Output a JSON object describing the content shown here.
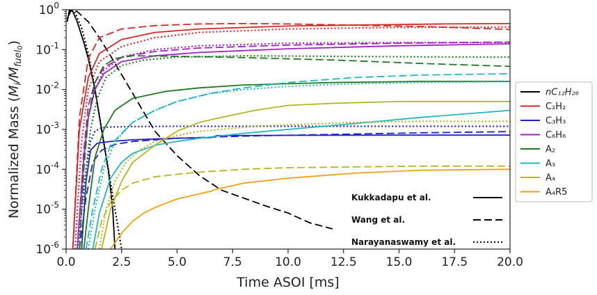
{
  "chart_data": {
    "type": "line",
    "title": "",
    "xlabel": "Time ASOI [ms]",
    "ylabel": "Normalized Mass (M_i/M_fuel0)",
    "ylabel_parts": {
      "prefix": "Normalized Mass (",
      "m1": "M",
      "s1": "i",
      "slash": "/",
      "m2": "M",
      "s2": "fuel",
      "s3": "0",
      "suffix": ")"
    },
    "xlim": [
      0.0,
      20.0
    ],
    "ylim": [
      1e-06,
      1
    ],
    "yscale": "log",
    "x_ticks": [
      "0.0",
      "2.5",
      "5.0",
      "7.5",
      "10.0",
      "12.5",
      "15.0",
      "17.5",
      "20.0"
    ],
    "y_ticks": [
      {
        "base": "10",
        "exp": "-6"
      },
      {
        "base": "10",
        "exp": "-5"
      },
      {
        "base": "10",
        "exp": "-4"
      },
      {
        "base": "10",
        "exp": "-3"
      },
      {
        "base": "10",
        "exp": "-2"
      },
      {
        "base": "10",
        "exp": "-1"
      },
      {
        "base": "10",
        "exp": "0"
      }
    ],
    "legend_position": "right",
    "species": [
      {
        "id": "c12h26",
        "label": "nC₁₂H₂₆",
        "color": "#000000"
      },
      {
        "id": "c2h2",
        "label": "C₂H₂",
        "color": "#d62728"
      },
      {
        "id": "c3h3",
        "label": "C₃H₃",
        "color": "#1f1fd0"
      },
      {
        "id": "c6h6",
        "label": "C₆H₆",
        "color": "#a020c0"
      },
      {
        "id": "a2",
        "label": "A₂",
        "color": "#1e7a1e"
      },
      {
        "id": "a3",
        "label": "A₃",
        "color": "#22b5c5"
      },
      {
        "id": "a4",
        "label": "A₄",
        "color": "#b5b520"
      },
      {
        "id": "a4r5",
        "label": "A₄R5",
        "color": "#f5a010"
      }
    ],
    "mechanisms": [
      {
        "id": "kukkadapu",
        "label": "Kukkadapu et al.",
        "style": "solid"
      },
      {
        "id": "wang",
        "label": "Wang et al.",
        "style": "dashed"
      },
      {
        "id": "narayanaswamy",
        "label": "Narayanaswamy et al.",
        "style": "dotted"
      }
    ],
    "series": [
      {
        "species": "c12h26",
        "mechanism": "kukkadapu",
        "x": [
          0.05,
          0.15,
          0.3,
          0.5,
          0.8,
          1.0,
          1.3,
          1.6,
          1.9,
          2.1,
          2.2
        ],
        "y": [
          0.5,
          1.0,
          0.9,
          0.5,
          0.15,
          0.06,
          0.01,
          0.001,
          0.0001,
          1e-05,
          1e-06
        ]
      },
      {
        "species": "c12h26",
        "mechanism": "wang",
        "x": [
          0.1,
          0.25,
          0.5,
          1.0,
          1.5,
          2.0,
          3.0,
          4.0,
          5.0,
          6.0,
          7.0,
          8.0,
          9.0,
          10.0,
          11.0,
          12.0
        ],
        "y": [
          0.7,
          1.0,
          0.9,
          0.5,
          0.2,
          0.07,
          0.008,
          0.0009,
          0.00022,
          7e-05,
          3e-05,
          1.9e-05,
          1.2e-05,
          8e-06,
          4.5e-06,
          3.2e-06
        ]
      },
      {
        "species": "c12h26",
        "mechanism": "narayanaswamy",
        "x": [
          0.05,
          0.2,
          0.4,
          0.7,
          1.0,
          1.3,
          1.6,
          1.9,
          2.2,
          2.5
        ],
        "y": [
          0.6,
          1.0,
          0.85,
          0.35,
          0.08,
          0.01,
          0.001,
          0.0001,
          1e-05,
          1e-06
        ]
      },
      {
        "species": "c2h2",
        "mechanism": "kukkadapu",
        "x": [
          0.3,
          0.6,
          1.0,
          1.5,
          2.5,
          4.0,
          6.0,
          10.0,
          14.0,
          17.0,
          20.0
        ],
        "y": [
          1e-06,
          0.001,
          0.02,
          0.08,
          0.18,
          0.27,
          0.33,
          0.39,
          0.42,
          0.44,
          0.45
        ]
      },
      {
        "species": "c2h2",
        "mechanism": "wang",
        "x": [
          0.3,
          0.6,
          1.0,
          1.5,
          2.5,
          4.0,
          6.0,
          8.0,
          10.0,
          13.0,
          16.0,
          18.0,
          20.0
        ],
        "y": [
          1e-06,
          0.002,
          0.06,
          0.2,
          0.33,
          0.4,
          0.44,
          0.45,
          0.44,
          0.41,
          0.38,
          0.35,
          0.32
        ]
      },
      {
        "species": "c2h2",
        "mechanism": "narayanaswamy",
        "x": [
          0.4,
          0.7,
          1.0,
          1.5,
          2.5,
          4.0,
          6.0,
          10.0,
          15.0,
          20.0
        ],
        "y": [
          1e-06,
          0.0005,
          0.01,
          0.05,
          0.12,
          0.2,
          0.27,
          0.33,
          0.36,
          0.37
        ]
      },
      {
        "species": "c3h3",
        "mechanism": "kukkadapu",
        "x": [
          0.7,
          0.9,
          1.1,
          1.4,
          2.0,
          3.0,
          5.0,
          6.5,
          6.8,
          10.0,
          15.0,
          20.0
        ],
        "y": [
          1e-06,
          5e-05,
          0.0003,
          0.00045,
          0.0005,
          0.00055,
          0.0006,
          0.00062,
          0.0007,
          0.00071,
          0.00072,
          0.00072
        ]
      },
      {
        "species": "c3h3",
        "mechanism": "wang",
        "x": [
          0.6,
          0.9,
          1.2,
          1.6,
          2.2,
          3.0,
          5.0,
          8.0,
          12.0,
          16.0,
          20.0
        ],
        "y": [
          1e-06,
          2e-05,
          0.00015,
          0.0003,
          0.00042,
          0.0005,
          0.0006,
          0.00068,
          0.00075,
          0.00082,
          0.00088
        ]
      },
      {
        "species": "c3h3",
        "mechanism": "narayanaswamy",
        "x": [
          0.5,
          0.7,
          0.9,
          1.1,
          1.3,
          1.6,
          2.0,
          3.0,
          5.0,
          10.0,
          15.0,
          20.0
        ],
        "y": [
          1e-06,
          1e-05,
          0.0001,
          0.0005,
          0.0009,
          0.0011,
          0.00115,
          0.00118,
          0.0012,
          0.0012,
          0.0012,
          0.0012
        ]
      },
      {
        "species": "c6h6",
        "mechanism": "kukkadapu",
        "x": [
          0.5,
          0.8,
          1.0,
          1.3,
          1.7,
          2.5,
          4.0,
          6.0,
          10.0,
          15.0,
          20.0
        ],
        "y": [
          1e-06,
          0.0002,
          0.002,
          0.01,
          0.025,
          0.05,
          0.07,
          0.085,
          0.105,
          0.125,
          0.14
        ]
      },
      {
        "species": "c6h6",
        "mechanism": "wang",
        "x": [
          0.5,
          0.8,
          1.0,
          1.3,
          1.7,
          2.5,
          4.0,
          6.0,
          10.0,
          15.0,
          20.0
        ],
        "y": [
          1e-06,
          0.0003,
          0.004,
          0.015,
          0.035,
          0.065,
          0.09,
          0.11,
          0.13,
          0.145,
          0.155
        ]
      },
      {
        "species": "c6h6",
        "mechanism": "narayanaswamy",
        "x": [
          0.6,
          0.8,
          1.0,
          1.3,
          1.7,
          2.5,
          4.0,
          6.0,
          10.0,
          15.0,
          20.0
        ],
        "y": [
          1e-06,
          0.0002,
          0.002,
          0.01,
          0.03,
          0.065,
          0.1,
          0.125,
          0.145,
          0.15,
          0.15
        ]
      },
      {
        "species": "a2",
        "mechanism": "kukkadapu",
        "x": [
          0.8,
          1.0,
          1.3,
          1.7,
          2.2,
          3.0,
          4.5,
          6.0,
          8.0,
          12.0,
          16.0,
          20.0
        ],
        "y": [
          1e-06,
          1e-05,
          0.0002,
          0.001,
          0.003,
          0.006,
          0.009,
          0.011,
          0.013,
          0.015,
          0.016,
          0.016
        ]
      },
      {
        "species": "a2",
        "mechanism": "wang",
        "x": [
          0.6,
          0.8,
          1.0,
          1.3,
          1.7,
          2.2,
          3.0,
          5.0,
          8.0,
          12.0,
          16.0,
          20.0
        ],
        "y": [
          1e-06,
          0.0001,
          0.002,
          0.015,
          0.04,
          0.06,
          0.07,
          0.068,
          0.063,
          0.055,
          0.045,
          0.038
        ]
      },
      {
        "species": "a2",
        "mechanism": "narayanaswamy",
        "x": [
          0.7,
          0.9,
          1.1,
          1.4,
          1.8,
          2.5,
          3.5,
          5.0,
          8.0,
          12.0,
          16.0,
          20.0
        ],
        "y": [
          1e-06,
          0.0001,
          0.001,
          0.006,
          0.02,
          0.04,
          0.055,
          0.065,
          0.07,
          0.068,
          0.066,
          0.065
        ]
      },
      {
        "species": "a3",
        "mechanism": "kukkadapu",
        "x": [
          1.2,
          1.5,
          2.0,
          2.5,
          3.0,
          4.0,
          5.0,
          6.0,
          8.0,
          10.0,
          13.0,
          16.0,
          20.0
        ],
        "y": [
          1e-06,
          8e-06,
          6e-05,
          0.00015,
          0.00025,
          0.0004,
          0.0005,
          0.0006,
          0.0008,
          0.001,
          0.0014,
          0.002,
          0.003
        ]
      },
      {
        "species": "a3",
        "mechanism": "wang",
        "x": [
          0.9,
          1.2,
          1.6,
          2.0,
          2.5,
          3.0,
          4.0,
          5.0,
          6.5,
          8.0,
          10.0,
          13.0,
          16.0,
          20.0
        ],
        "y": [
          1e-06,
          1e-05,
          0.0001,
          0.0004,
          0.0008,
          0.0015,
          0.003,
          0.005,
          0.008,
          0.011,
          0.015,
          0.02,
          0.023,
          0.025
        ]
      },
      {
        "species": "a3",
        "mechanism": "narayanaswamy",
        "x": [
          1.0,
          1.3,
          1.7,
          2.2,
          3.0,
          4.0,
          5.0,
          6.5,
          8.0,
          10.0,
          13.0,
          16.0,
          20.0
        ],
        "y": [
          1e-06,
          1e-05,
          0.0001,
          0.0005,
          0.0015,
          0.003,
          0.005,
          0.008,
          0.01,
          0.012,
          0.014,
          0.015,
          0.016
        ]
      },
      {
        "species": "a4",
        "mechanism": "kukkadapu",
        "x": [
          1.6,
          2.0,
          2.5,
          3.0,
          4.0,
          5.0,
          6.0,
          7.0,
          8.5,
          10.0,
          12.0,
          15.0,
          20.0
        ],
        "y": [
          1e-06,
          1e-05,
          5e-05,
          0.00015,
          0.0004,
          0.0009,
          0.0015,
          0.002,
          0.003,
          0.004,
          0.0045,
          0.005,
          0.005
        ]
      },
      {
        "species": "a4",
        "mechanism": "wang",
        "x": [
          1.3,
          1.6,
          2.0,
          2.5,
          3.0,
          4.0,
          5.0,
          6.0,
          8.0,
          10.0,
          13.0,
          16.0,
          20.0
        ],
        "y": [
          1e-06,
          5e-06,
          1.5e-05,
          3e-05,
          4.5e-05,
          6.5e-05,
          7.5e-05,
          8.5e-05,
          0.0001,
          0.00011,
          0.000115,
          0.00012,
          0.00012
        ]
      },
      {
        "species": "a4",
        "mechanism": "narayanaswamy",
        "x": [
          1.5,
          1.8,
          2.2,
          2.7,
          3.3,
          4.0,
          5.0,
          6.0,
          7.0,
          8.5,
          10.0,
          13.0,
          16.0,
          20.0
        ],
        "y": [
          1e-06,
          1e-05,
          5e-05,
          0.00015,
          0.0003,
          0.0005,
          0.0007,
          0.0009,
          0.001,
          0.0012,
          0.0013,
          0.0015,
          0.0016,
          0.0016
        ]
      },
      {
        "species": "a4r5",
        "mechanism": "kukkadapu",
        "x": [
          2.0,
          2.5,
          3.0,
          3.5,
          4.0,
          5.0,
          6.5,
          6.8,
          8.0,
          10.0,
          13.0,
          16.0,
          20.0
        ],
        "y": [
          1e-06,
          2.5e-06,
          5e-06,
          8e-06,
          1.1e-05,
          1.8e-05,
          2.8e-05,
          3.2e-05,
          4.5e-05,
          6e-05,
          8e-05,
          9.5e-05,
          0.0001
        ]
      }
    ]
  }
}
